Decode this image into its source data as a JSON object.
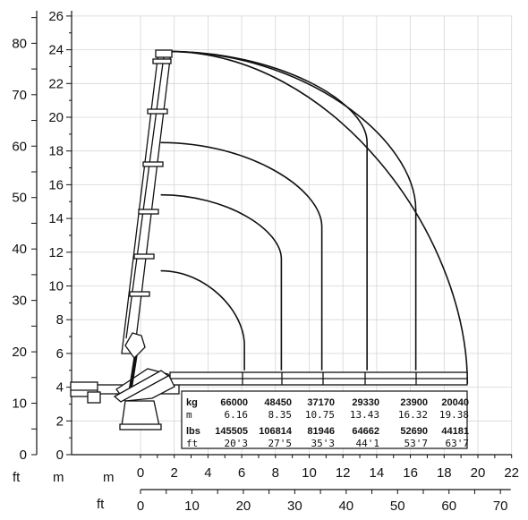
{
  "units": {
    "left_ft": "ft",
    "left_m": "m",
    "bottom_m_left": "m",
    "bottom_m_label": "m",
    "bottom_ft": "ft"
  },
  "y_m_ticks": [
    "0",
    "2",
    "4",
    "6",
    "8",
    "10",
    "12",
    "14",
    "16",
    "18",
    "20",
    "22",
    "24",
    "26"
  ],
  "y_ft_ticks": [
    "0",
    "10",
    "20",
    "30",
    "40",
    "50",
    "60",
    "70",
    "80"
  ],
  "x_m_ticks": [
    "0",
    "2",
    "4",
    "6",
    "8",
    "10",
    "12",
    "14",
    "16",
    "18",
    "20",
    "22"
  ],
  "x_ft_ticks": [
    "0",
    "10",
    "20",
    "30",
    "40",
    "50",
    "60",
    "70"
  ],
  "load_table": {
    "row_kg_label": "kg",
    "row_m_label": "m",
    "row_lbs_label": "lbs",
    "row_ft_label": "ft",
    "kg": [
      "66000",
      "48450",
      "37170",
      "29330",
      "23900",
      "20040"
    ],
    "m": [
      "6.16",
      "8.35",
      "10.75",
      "13.43",
      "16.32",
      "19.38"
    ],
    "lbs": [
      "145505",
      "106814",
      "81946",
      "64662",
      "52690",
      "44181"
    ],
    "ft": [
      "20'3",
      "27'5",
      "35'3",
      "44'1",
      "53'7",
      "63'7"
    ]
  },
  "chart_data": {
    "type": "line",
    "title": "",
    "xlabel": "m",
    "ylabel": "m",
    "xlim": [
      0,
      22
    ],
    "ylim": [
      0,
      26
    ],
    "x2label": "ft",
    "x2lim": [
      0,
      70
    ],
    "y2label": "ft",
    "y2lim": [
      0,
      80
    ],
    "grid": true,
    "series": [
      {
        "values": [
          [
            1.2,
            10.9
          ],
          [
            6.16,
            6.5
          ],
          [
            6.16,
            5.0
          ]
        ]
      },
      {
        "values": [
          [
            1.2,
            15.4
          ],
          [
            8.35,
            11.6
          ],
          [
            8.35,
            5.0
          ]
        ]
      },
      {
        "values": [
          [
            1.2,
            18.5
          ],
          [
            10.75,
            13.5
          ],
          [
            10.75,
            5.0
          ]
        ]
      },
      {
        "values": [
          [
            1.6,
            23.9
          ],
          [
            13.43,
            18.5
          ],
          [
            13.43,
            5.0
          ]
        ]
      },
      {
        "values": [
          [
            1.6,
            23.9
          ],
          [
            16.32,
            14.5
          ],
          [
            16.32,
            5.0
          ]
        ]
      },
      {
        "values": [
          [
            1.6,
            23.9
          ],
          [
            19.38,
            4.2
          ]
        ]
      }
    ]
  }
}
